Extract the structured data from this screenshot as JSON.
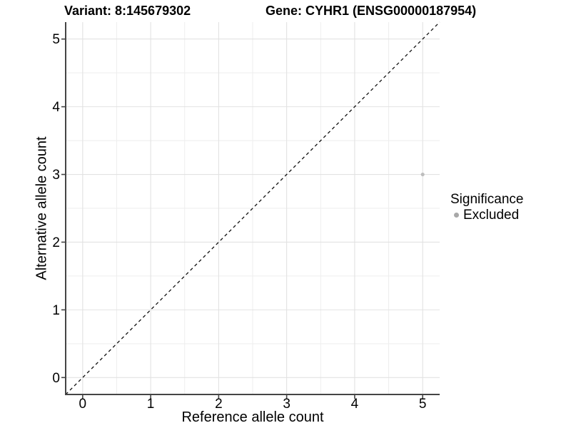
{
  "header": {
    "variant_title": "Variant: 8:145679302",
    "gene_title": "Gene: CYHR1 (ENSG00000187954)"
  },
  "chart_data": {
    "type": "scatter",
    "title": "Variant: 8:145679302 — Gene: CYHR1 (ENSG00000187954)",
    "xlabel": "Reference allele count",
    "ylabel": "Alternative allele count",
    "xlim": [
      -0.25,
      5.25
    ],
    "ylim": [
      -0.25,
      5.25
    ],
    "x_ticks": [
      0,
      1,
      2,
      3,
      4,
      5
    ],
    "y_ticks": [
      0,
      1,
      2,
      3,
      4,
      5
    ],
    "grid": "major and minor (minor at 0.5 steps)",
    "legend_position": "right",
    "series": [
      {
        "name": "Excluded",
        "color": "#bdbdbd",
        "point_radius": 2.6,
        "points": [
          [
            5,
            3
          ]
        ]
      }
    ],
    "abline": {
      "slope": 1,
      "intercept": 0,
      "style": "dashed",
      "color": "#111111"
    }
  },
  "legend": {
    "title": "Significance",
    "items": [
      {
        "label": "Excluded",
        "swatch_color": "#a8a8a8"
      }
    ]
  },
  "colors": {
    "background": "#ffffff",
    "axis_line": "#454545",
    "tick_mark": "#454545",
    "grid_major": "#e2e2e2",
    "grid_minor": "#eeeeee",
    "text": "#000000"
  }
}
